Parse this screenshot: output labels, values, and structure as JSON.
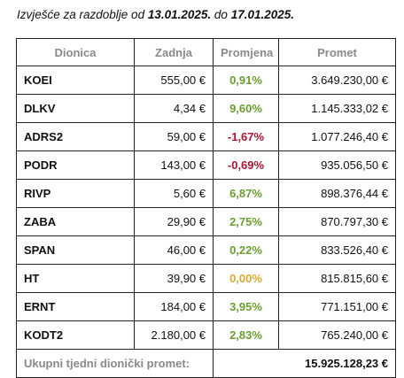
{
  "title": {
    "prefix": "Izvješće za razdoblje od ",
    "date_from": "13.01.2025.",
    "middle": " do ",
    "date_to": "17.01.2025."
  },
  "colors": {
    "positive": "#6aa02e",
    "negative": "#b3122f",
    "zero": "#e0a82e",
    "header_text": "#8a8a8a"
  },
  "table": {
    "headers": [
      "Dionica",
      "Zadnja",
      "Promjena",
      "Promet"
    ],
    "rows": [
      {
        "name": "KOEI",
        "last": "555,00 €",
        "change": "0,91%",
        "trend": "pos",
        "turnover": "3.649.230,00 €"
      },
      {
        "name": "DLKV",
        "last": "4,34 €",
        "change": "9,60%",
        "trend": "pos",
        "turnover": "1.145.333,02 €"
      },
      {
        "name": "ADRS2",
        "last": "59,00 €",
        "change": "-1,67%",
        "trend": "neg",
        "turnover": "1.077.246,40 €"
      },
      {
        "name": "PODR",
        "last": "143,00 €",
        "change": "-0,69%",
        "trend": "neg",
        "turnover": "935.056,50 €"
      },
      {
        "name": "RIVP",
        "last": "5,60 €",
        "change": "6,87%",
        "trend": "pos",
        "turnover": "898.376,44 €"
      },
      {
        "name": "ZABA",
        "last": "29,90 €",
        "change": "2,75%",
        "trend": "pos",
        "turnover": "870.797,30 €"
      },
      {
        "name": "SPAN",
        "last": "46,00 €",
        "change": "0,22%",
        "trend": "pos",
        "turnover": "833.526,40 €"
      },
      {
        "name": "HT",
        "last": "39,90 €",
        "change": "0,00%",
        "trend": "zero",
        "turnover": "815.815,60 €"
      },
      {
        "name": "ERNT",
        "last": "184,00 €",
        "change": "3,95%",
        "trend": "pos",
        "turnover": "771.151,00 €"
      },
      {
        "name": "KODT2",
        "last": "2.180,00 €",
        "change": "2,83%",
        "trend": "pos",
        "turnover": "765.240,00 €"
      }
    ],
    "total_label": "Ukupni tjedni dionički promet:",
    "total_value": "15.925.128,23 €"
  }
}
